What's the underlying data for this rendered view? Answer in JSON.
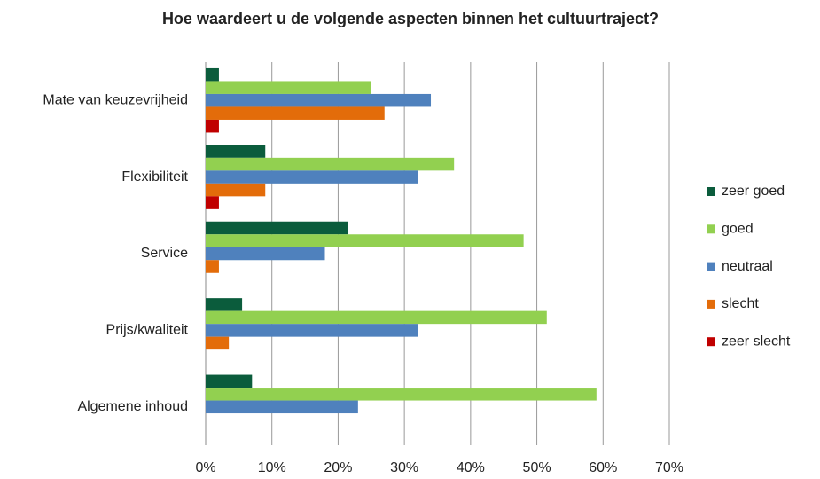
{
  "chart_data": {
    "type": "hbar",
    "title": "Hoe waardeert u de volgende aspecten binnen het cultuurtraject?",
    "categories": [
      "Mate van keuzevrijheid",
      "Flexibiliteit",
      "Service",
      "Prijs/kwaliteit",
      "Algemene inhoud"
    ],
    "series": [
      {
        "name": "zeer goed",
        "color": "#0b5c3c",
        "values": [
          2,
          9,
          21.5,
          5.5,
          7
        ]
      },
      {
        "name": "goed",
        "color": "#92d050",
        "values": [
          25,
          37.5,
          48,
          51.5,
          59
        ]
      },
      {
        "name": "neutraal",
        "color": "#4f81bd",
        "values": [
          34,
          32,
          18,
          32,
          23
        ]
      },
      {
        "name": "slecht",
        "color": "#e36c0a",
        "values": [
          27,
          9,
          2,
          3.5,
          0
        ]
      },
      {
        "name": "zeer slecht",
        "color": "#c00000",
        "values": [
          2,
          2,
          0,
          0,
          0
        ]
      }
    ],
    "xlim": [
      0,
      70
    ],
    "xticks": [
      {
        "value": 0,
        "label": "0%"
      },
      {
        "value": 10,
        "label": "10%"
      },
      {
        "value": 20,
        "label": "20%"
      },
      {
        "value": 30,
        "label": "30%"
      },
      {
        "value": 40,
        "label": "40%"
      },
      {
        "value": 50,
        "label": "50%"
      },
      {
        "value": 60,
        "label": "60%"
      },
      {
        "value": 70,
        "label": "70%"
      }
    ],
    "grid": true,
    "legend": "right"
  }
}
